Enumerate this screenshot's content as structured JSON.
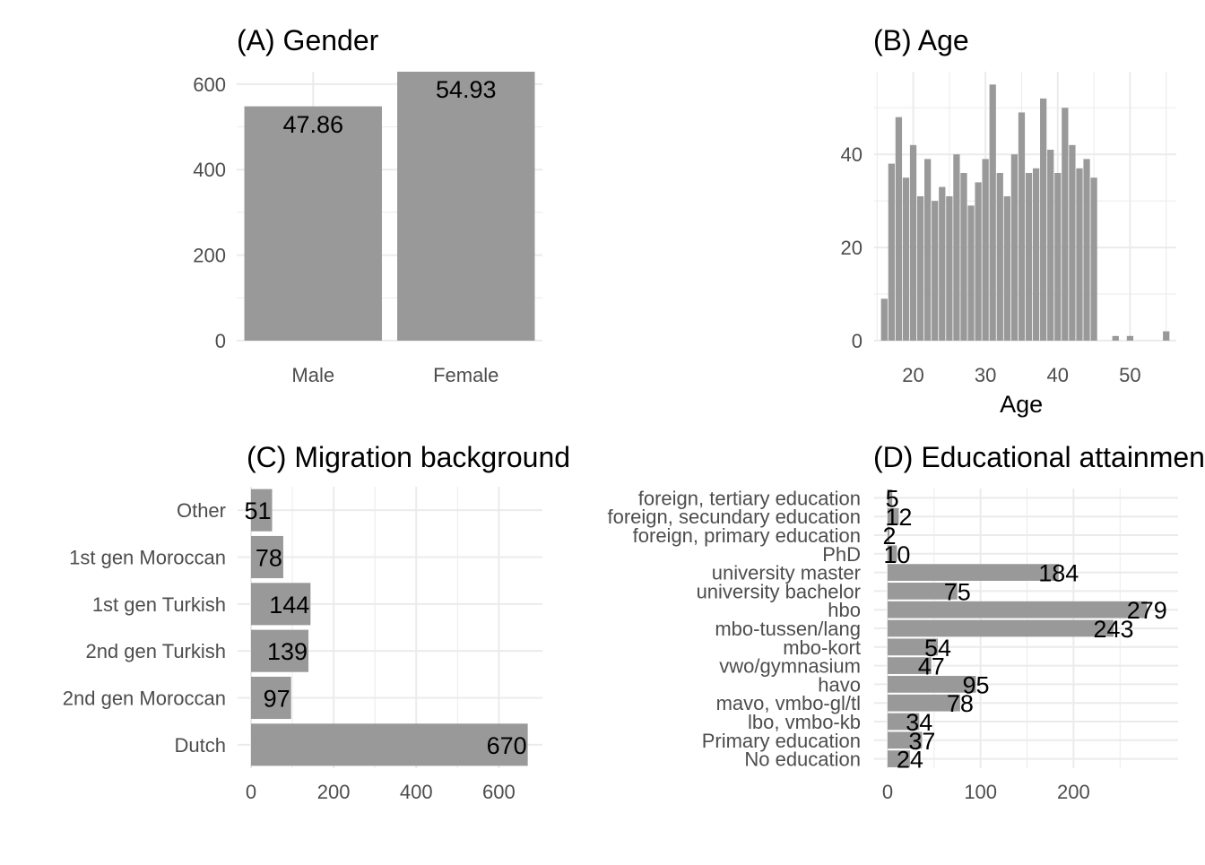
{
  "colors": {
    "bar": "#999999",
    "grid": "#ebebeb",
    "tick_text": "#4d4d4d",
    "label_text": "#000000"
  },
  "chart_data": [
    {
      "type": "bar",
      "title": "(A) Gender",
      "categories": [
        "Male",
        "Female"
      ],
      "values": [
        548,
        629
      ],
      "data_labels": [
        "47.86",
        "54.93"
      ],
      "xlabel": "",
      "ylabel": "",
      "ylim": [
        0,
        629
      ],
      "yticks": [
        0,
        200,
        400,
        600
      ],
      "grid": true
    },
    {
      "type": "bar",
      "title": "(B) Age",
      "x": [
        16,
        17,
        18,
        19,
        20,
        21,
        22,
        23,
        24,
        25,
        26,
        27,
        28,
        29,
        30,
        31,
        32,
        33,
        34,
        35,
        36,
        37,
        38,
        39,
        40,
        41,
        42,
        43,
        44,
        45,
        46,
        47,
        48,
        49,
        50,
        51,
        52,
        53,
        54,
        55
      ],
      "values": [
        9,
        38,
        48,
        35,
        42,
        31,
        39,
        30,
        33,
        31,
        40,
        36,
        29,
        34,
        39,
        55,
        36,
        31,
        40,
        49,
        36,
        37,
        52,
        41,
        36,
        50,
        42,
        37,
        39,
        35,
        0,
        0,
        1,
        0,
        1,
        0,
        0,
        0,
        0,
        2
      ],
      "xlabel": "Age",
      "ylabel": "",
      "xlim": [
        14.6,
        56.4
      ],
      "ylim": [
        0,
        55
      ],
      "xticks": [
        20,
        30,
        40,
        50
      ],
      "yticks": [
        0,
        20,
        40
      ],
      "grid": true
    },
    {
      "type": "bar",
      "orientation": "horizontal",
      "title": "(C) Migration background",
      "categories": [
        "Other",
        "1st gen Moroccan",
        "1st gen Turkish",
        "2nd gen Turkish",
        "2nd gen Moroccan",
        "Dutch"
      ],
      "values": [
        51,
        78,
        144,
        139,
        97,
        670
      ],
      "data_labels": [
        "51",
        "78",
        "144",
        "139",
        "97",
        "670"
      ],
      "xlabel": "",
      "ylabel": "",
      "xlim": [
        0,
        670
      ],
      "xticks": [
        0,
        200,
        400,
        600
      ],
      "grid": true
    },
    {
      "type": "bar",
      "orientation": "horizontal",
      "title": "(D) Educational attainment",
      "categories": [
        "foreign, tertiary education",
        "foreign, secundary education",
        "foreign, primary education",
        "PhD",
        "university master",
        "university bachelor",
        "hbo",
        "mbo-tussen/lang",
        "mbo-kort",
        "vwo/gymnasium",
        "havo",
        "mavo, vmbo-gl/tl",
        "lbo, vmbo-kb",
        "Primary education",
        "No education"
      ],
      "values": [
        5,
        12,
        2,
        10,
        184,
        75,
        279,
        243,
        54,
        47,
        95,
        78,
        34,
        37,
        24
      ],
      "data_labels": [
        "5",
        "12",
        "2",
        "10",
        "184",
        "75",
        "279",
        "243",
        "54",
        "47",
        "95",
        "78",
        "34",
        "37",
        "24"
      ],
      "xlabel": "",
      "ylabel": "",
      "xlim": [
        0,
        279
      ],
      "xticks": [
        0,
        100,
        200
      ],
      "grid": true
    }
  ]
}
